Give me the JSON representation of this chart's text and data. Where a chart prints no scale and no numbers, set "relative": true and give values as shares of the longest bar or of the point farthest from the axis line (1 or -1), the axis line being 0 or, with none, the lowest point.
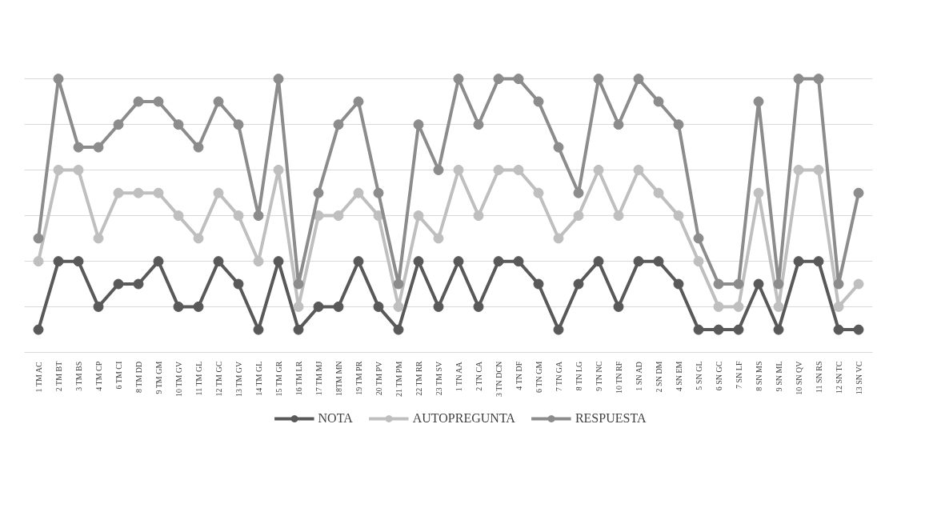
{
  "chart_data": {
    "type": "line",
    "relative": true,
    "grid": "y",
    "legend": "bottom",
    "marker": "circle",
    "line_style": "solid",
    "categories": [
      "1 TM AC",
      "2 TM BT",
      "3 TM BS",
      "4 TM CP",
      "6 TM CI",
      "8 TM DD",
      "9 TM GM",
      "10 TM GV",
      "11 TM GL",
      "12 TM GC",
      "13 TM GV",
      "14 TM GL",
      "15 TM GR",
      "16 TM LR",
      "17 TM MJ",
      "18TM MN",
      "19 TM PR",
      "20 TM PV",
      "21 TM PM",
      "22 TM RR",
      "23 TM SV",
      "1 TN AA",
      "2 TN CA",
      "3 TN DCN",
      "4 TN DF",
      "6 TN GM",
      "7 TN GA",
      "8 TN LG",
      "9 TN NC",
      "10 TN RF",
      "1 SN AD",
      "2 SN DM",
      "4 SN EM",
      "5 SN GL",
      "6 SN GC",
      "7 SN LF",
      "8 SN MS",
      "9 SN ML",
      "10 SN QV",
      "11 SN RS",
      "12 SN TC",
      "13 SN VC"
    ],
    "series": [
      {
        "name": "NOTA",
        "color": "#595959",
        "values": [
          0.083,
          0.333,
          0.333,
          0.167,
          0.25,
          0.25,
          0.333,
          0.167,
          0.167,
          0.333,
          0.25,
          0.083,
          0.333,
          0.083,
          0.167,
          0.167,
          0.333,
          0.167,
          0.083,
          0.333,
          0.167,
          0.333,
          0.167,
          0.333,
          0.333,
          0.25,
          0.083,
          0.25,
          0.333,
          0.167,
          0.333,
          0.333,
          0.25,
          0.083,
          0.083,
          0.083,
          0.25,
          0.083,
          0.333,
          0.333,
          0.083,
          0.083
        ]
      },
      {
        "name": "AUTOPREGUNTA",
        "color": "#bfbfbf",
        "values": [
          0.333,
          0.667,
          0.667,
          0.417,
          0.583,
          0.583,
          0.583,
          0.5,
          0.417,
          0.583,
          0.5,
          0.333,
          0.667,
          0.167,
          0.5,
          0.5,
          0.583,
          0.5,
          0.167,
          0.5,
          0.417,
          0.667,
          0.5,
          0.667,
          0.667,
          0.583,
          0.417,
          0.5,
          0.667,
          0.5,
          0.667,
          0.583,
          0.5,
          0.333,
          0.167,
          0.167,
          0.583,
          0.167,
          0.667,
          0.667,
          0.167,
          0.25
        ]
      },
      {
        "name": "RESPUESTA",
        "color": "#8c8c8c",
        "values": [
          0.417,
          1,
          0.75,
          0.75,
          0.833,
          0.917,
          0.917,
          0.833,
          0.75,
          0.917,
          0.833,
          0.5,
          1,
          0.25,
          0.583,
          0.833,
          0.917,
          0.583,
          0.25,
          0.833,
          0.667,
          1,
          0.833,
          1,
          1,
          0.917,
          0.75,
          0.583,
          1,
          0.833,
          1,
          0.917,
          0.833,
          0.417,
          0.25,
          0.25,
          0.917,
          0.25,
          1,
          1,
          0.25,
          0.583
        ]
      }
    ]
  }
}
